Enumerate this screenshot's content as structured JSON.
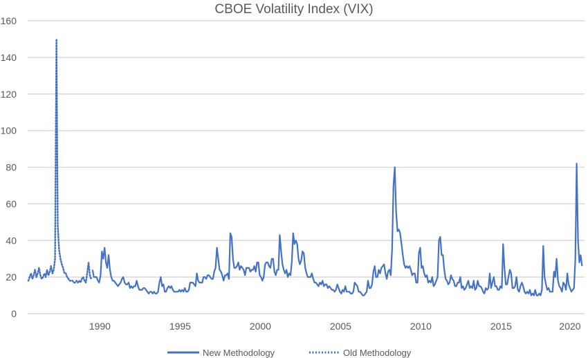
{
  "chart_data": {
    "type": "line",
    "title": "CBOE Volatility Index (VIX)",
    "xlabel": "",
    "ylabel": "",
    "ylim": [
      0,
      160
    ],
    "yticks": [
      "0",
      "20",
      "40",
      "60",
      "80",
      "100",
      "120",
      "140",
      "160"
    ],
    "xticks": [
      "1990",
      "1995",
      "2000",
      "2005",
      "2010",
      "2015",
      "2020"
    ],
    "xlim": [
      "1986-01",
      "2020-07"
    ],
    "grid": "horizontal",
    "legend": "bottom",
    "color": "#4472C4",
    "series": [
      {
        "name": "Old Methodology",
        "style": "dotted",
        "monthly_by_year": {
          "1986": [
            18,
            20,
            22,
            19,
            21,
            24,
            20,
            22,
            25,
            21,
            19,
            20
          ],
          "1987": [
            22,
            20,
            24,
            21,
            23,
            26,
            22,
            24,
            30,
            150,
            48,
            35
          ],
          "1988": [
            30,
            27,
            25,
            22,
            22,
            20,
            19,
            18,
            18,
            18,
            17,
            17
          ],
          "1989": [
            18,
            17,
            18,
            17,
            19,
            20,
            18,
            17,
            22,
            28,
            21,
            19
          ]
        }
      },
      {
        "name": "New Methodology",
        "style": "solid",
        "monthly_by_year": {
          "1990": [
            24,
            20,
            20,
            20,
            18,
            17,
            21,
            34,
            30,
            36,
            28,
            25
          ],
          "1991": [
            32,
            24,
            20,
            18,
            18,
            17,
            16,
            15,
            16,
            17,
            19,
            20
          ],
          "1992": [
            17,
            16,
            16,
            17,
            14,
            15,
            14,
            15,
            15,
            18,
            15,
            13
          ],
          "1993": [
            13,
            13,
            14,
            14,
            13,
            12,
            11,
            12,
            12,
            11,
            12,
            11
          ],
          "1994": [
            11,
            12,
            17,
            20,
            15,
            16,
            12,
            12,
            14,
            15,
            14,
            15
          ],
          "1995": [
            13,
            12,
            12,
            12,
            12,
            13,
            12,
            13,
            12,
            14,
            12,
            12
          ],
          "1996": [
            13,
            17,
            17,
            17,
            16,
            15,
            22,
            18,
            17,
            17,
            17,
            20
          ],
          "1997": [
            20,
            19,
            21,
            21,
            20,
            19,
            19,
            23,
            25,
            36,
            30,
            24
          ],
          "1998": [
            23,
            21,
            18,
            21,
            21,
            22,
            19,
            44,
            42,
            30,
            25,
            25
          ],
          "1999": [
            26,
            28,
            24,
            26,
            25,
            24,
            21,
            25,
            25,
            25,
            23,
            24
          ],
          "2000": [
            24,
            26,
            23,
            28,
            28,
            21,
            20,
            18,
            20,
            27,
            28,
            28
          ],
          "2001": [
            26,
            25,
            30,
            30,
            23,
            21,
            24,
            24,
            43,
            34,
            27,
            24
          ],
          "2002": [
            22,
            24,
            20,
            22,
            21,
            28,
            44,
            38,
            40,
            38,
            30,
            27
          ],
          "2003": [
            29,
            34,
            33,
            25,
            22,
            20,
            20,
            20,
            22,
            19,
            17,
            17
          ],
          "2004": [
            16,
            15,
            17,
            16,
            18,
            15,
            16,
            16,
            14,
            15,
            14,
            13
          ],
          "2005": [
            13,
            12,
            13,
            16,
            14,
            12,
            11,
            13,
            12,
            15,
            12,
            12
          ],
          "2006": [
            12,
            11,
            11,
            12,
            17,
            16,
            15,
            12,
            12,
            11,
            10,
            10
          ],
          "2007": [
            11,
            12,
            18,
            14,
            14,
            16,
            23,
            26,
            20,
            20,
            24,
            22
          ],
          "2008": [
            25,
            26,
            27,
            22,
            19,
            23,
            24,
            21,
            35,
            70,
            80,
            56
          ],
          "2009": [
            45,
            46,
            44,
            38,
            32,
            27,
            25,
            26,
            25,
            26,
            24,
            21
          ],
          "2010": [
            22,
            22,
            17,
            17,
            33,
            36,
            25,
            26,
            22,
            20,
            21,
            17
          ],
          "2011": [
            18,
            17,
            20,
            15,
            16,
            18,
            20,
            40,
            42,
            32,
            32,
            24
          ],
          "2012": [
            19,
            18,
            16,
            17,
            21,
            19,
            18,
            15,
            15,
            17,
            17,
            20
          ],
          "2013": [
            14,
            15,
            13,
            14,
            16,
            18,
            14,
            15,
            14,
            18,
            13,
            14
          ],
          "2014": [
            18,
            15,
            15,
            14,
            12,
            11,
            14,
            13,
            14,
            22,
            14,
            17
          ],
          "2015": [
            20,
            15,
            15,
            13,
            13,
            15,
            14,
            38,
            25,
            16,
            16,
            20
          ],
          "2016": [
            24,
            22,
            14,
            14,
            15,
            20,
            13,
            12,
            15,
            17,
            15,
            12
          ],
          "2017": [
            11,
            12,
            11,
            13,
            10,
            11,
            10,
            13,
            10,
            10,
            11,
            10
          ],
          "2018": [
            13,
            37,
            20,
            16,
            13,
            14,
            12,
            12,
            12,
            23,
            20,
            30
          ],
          "2019": [
            18,
            15,
            14,
            12,
            17,
            16,
            13,
            22,
            16,
            14,
            12,
            13
          ],
          "2020": [
            14,
            30,
            82,
            40,
            28,
            32,
            26
          ]
        }
      }
    ]
  }
}
